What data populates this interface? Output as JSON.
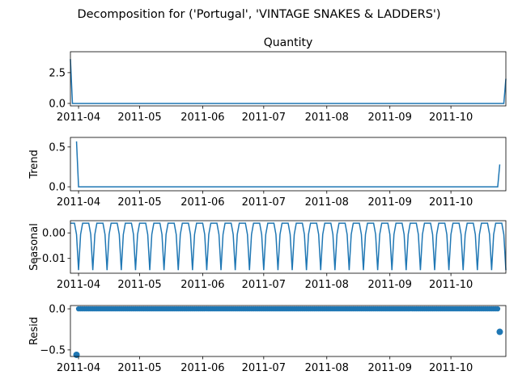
{
  "suptitle": "Decomposition for ('Portugal', 'VINTAGE SNAKES & LADDERS')",
  "chart_data": {
    "type": "line",
    "colors": {
      "series": "#1f77b4"
    },
    "x_start": "2011-03-28",
    "x_end": "2011-10-28",
    "x_ticks": [
      "2011-04",
      "2011-05",
      "2011-06",
      "2011-07",
      "2011-08",
      "2011-09",
      "2011-10"
    ],
    "panels": [
      {
        "key": "observed",
        "title": "Quantity",
        "ylabel": "",
        "kind": "line",
        "ylim": [
          -0.2,
          4.2
        ],
        "y_ticks": [
          0.0,
          2.5
        ],
        "y_tick_labels": [
          "0.0",
          "2.5"
        ],
        "points": [
          [
            "2011-03-28",
            3.6
          ],
          [
            "2011-03-29",
            0.0
          ],
          [
            "2011-10-27",
            0.0
          ],
          [
            "2011-10-28",
            2.0
          ]
        ]
      },
      {
        "key": "trend",
        "title": "",
        "ylabel": "Trend",
        "kind": "line",
        "ylim": [
          -0.05,
          0.62
        ],
        "y_ticks": [
          0.0,
          0.5
        ],
        "y_tick_labels": [
          "0.0",
          "0.5"
        ],
        "points": [
          [
            "2011-03-31",
            0.57
          ],
          [
            "2011-04-01",
            0.0
          ],
          [
            "2011-10-24",
            0.0
          ],
          [
            "2011-10-25",
            0.28
          ]
        ]
      },
      {
        "key": "seasonal",
        "title": "",
        "ylabel": "Seasonal",
        "kind": "seasonal",
        "ylim": [
          -0.0158,
          0.0048
        ],
        "y_ticks": [
          0.0,
          -0.01
        ],
        "y_tick_labels": [
          "0.00",
          "−0.01"
        ],
        "period": 7,
        "pattern": [
          0.0038,
          0.0038,
          0.0038,
          -0.0006,
          -0.0146,
          -0.0006,
          0.0038
        ]
      },
      {
        "key": "resid",
        "title": "",
        "ylabel": "Resid",
        "kind": "scatter",
        "ylim": [
          -0.58,
          0.04
        ],
        "y_ticks": [
          0.0,
          -0.5
        ],
        "y_tick_labels": [
          "0.0",
          "−0.5"
        ],
        "baseline": {
          "from": "2011-04-01",
          "to": "2011-10-24",
          "value": 0.0
        },
        "points": [
          [
            "2011-03-31",
            -0.56
          ],
          [
            "2011-10-25",
            -0.28
          ]
        ]
      }
    ]
  }
}
